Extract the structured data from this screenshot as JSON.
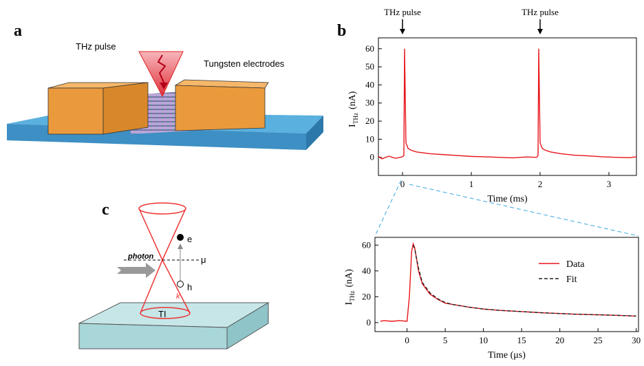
{
  "figure": {
    "panel_a": {
      "label": "a",
      "pulse_label": "THz pulse",
      "electrode_label": "Tungsten electrodes"
    },
    "panel_b": {
      "label": "b"
    },
    "panel_c": {
      "label": "c",
      "photon": "photon",
      "electron": "e",
      "hole": "h",
      "mu": "μ",
      "k": "k",
      "ti": "TI"
    }
  },
  "chart_data": [
    {
      "type": "line",
      "xlabel": "Time (ms)",
      "ylabel": {
        "main": "I",
        "sub": "THz",
        "unit": "(nA)"
      },
      "annotations": [
        {
          "text": "THz pulse",
          "x": 0
        },
        {
          "text": "THz pulse",
          "x": 2
        }
      ],
      "x": [
        -0.35,
        -0.3,
        -0.2,
        -0.1,
        0,
        0.02,
        0.03,
        0.05,
        0.08,
        0.12,
        0.2,
        0.4,
        0.6,
        0.8,
        1,
        1.2,
        1.4,
        1.6,
        1.8,
        1.95,
        1.97,
        1.98,
        2.0,
        2.03,
        2.07,
        2.15,
        2.3,
        2.5,
        2.7,
        2.9,
        3.1,
        3.3,
        3.4
      ],
      "series": [
        {
          "name": "I",
          "color": "#e8141b",
          "values": [
            0.5,
            -0.8,
            0.6,
            -0.5,
            0.3,
            1,
            60,
            8,
            5,
            4,
            3,
            2,
            1.5,
            1,
            0.5,
            0.3,
            0,
            -0.3,
            0.2,
            0,
            1,
            60,
            8,
            5,
            4,
            3,
            2,
            1.2,
            0.8,
            0.3,
            0,
            -0.2,
            0.3
          ]
        }
      ],
      "xlim": [
        -0.35,
        3.4
      ],
      "xticks": [
        0,
        1,
        2,
        3
      ],
      "ylim": [
        -10,
        66
      ],
      "yticks": [
        0,
        10,
        20,
        30,
        40,
        50,
        60
      ]
    },
    {
      "type": "line",
      "xlabel": "Time (μs)",
      "ylabel": {
        "main": "I",
        "sub": "THz",
        "unit": "(nA)"
      },
      "legend": "upper right",
      "x": [
        -3.5,
        -3,
        -2,
        -1,
        0,
        0.3,
        0.6,
        0.8,
        1,
        1.5,
        2,
        3,
        4,
        5,
        6,
        8,
        10,
        12,
        15,
        18,
        20,
        22,
        25,
        28,
        30
      ],
      "series": [
        {
          "name": "Data",
          "color": "#e8141b",
          "values": [
            1,
            1.5,
            1,
            1.5,
            1,
            20,
            55,
            61,
            58,
            40,
            30,
            22,
            18,
            15,
            14,
            12,
            10.5,
            9.5,
            8.5,
            7.5,
            7,
            6.5,
            6,
            5.5,
            5
          ]
        },
        {
          "name": "Fit",
          "color": "#222222",
          "dashed": true,
          "values": [
            null,
            null,
            null,
            null,
            null,
            null,
            null,
            60,
            57,
            42,
            31,
            23,
            18.5,
            15.5,
            14,
            12,
            10.5,
            9.5,
            8.5,
            7.5,
            7,
            6.5,
            6,
            5.5,
            5
          ]
        }
      ],
      "xlim": [
        -4.2,
        30.3
      ],
      "xticks": [
        0,
        5,
        10,
        15,
        20,
        25,
        30
      ],
      "ylim": [
        -7,
        66
      ],
      "yticks": [
        0,
        20,
        40,
        60
      ]
    }
  ]
}
